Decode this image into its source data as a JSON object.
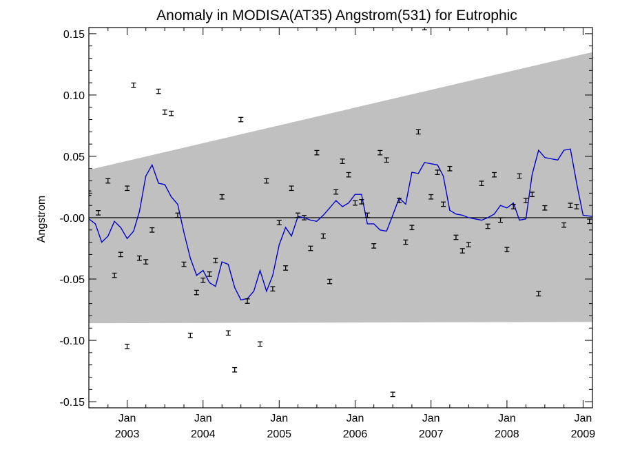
{
  "chart_data": {
    "type": "line",
    "title": "Anomaly in MODISA(AT35) Angstrom(531) for Eutrophic",
    "xlabel": "",
    "ylabel": "Angstrom",
    "xlim": [
      "2002-07-01",
      "2009-02-15"
    ],
    "ylim": [
      -0.155,
      0.155
    ],
    "y_ticks": [
      {
        "value": -0.15,
        "label": "-0.15"
      },
      {
        "value": -0.1,
        "label": "-0.10"
      },
      {
        "value": -0.05,
        "label": "-0.05"
      },
      {
        "value": 0.0,
        "label": "-0.00"
      },
      {
        "value": 0.05,
        "label": "0.05"
      },
      {
        "value": 0.1,
        "label": "0.10"
      },
      {
        "value": 0.15,
        "label": "0.15"
      }
    ],
    "x_ticks": [
      {
        "date": "2003-01-01",
        "month": "Jan",
        "year": "2003"
      },
      {
        "date": "2004-01-01",
        "month": "Jan",
        "year": "2004"
      },
      {
        "date": "2005-01-01",
        "month": "Jan",
        "year": "2005"
      },
      {
        "date": "2006-01-01",
        "month": "Jan",
        "year": "2006"
      },
      {
        "date": "2007-01-01",
        "month": "Jan",
        "year": "2007"
      },
      {
        "date": "2008-01-01",
        "month": "Jan",
        "year": "2008"
      },
      {
        "date": "2009-01-01",
        "month": "Jan",
        "year": "2009"
      }
    ],
    "grid": false,
    "zero_line": 0.0,
    "confidence_band": {
      "color": "#c0c0c0",
      "start": {
        "date": "2002-07-01",
        "upper": 0.039,
        "lower": -0.086
      },
      "end": {
        "date": "2009-02-15",
        "upper": 0.135,
        "lower": -0.085
      }
    },
    "series": [
      {
        "type": "line",
        "color": "#0000cc",
        "x": [
          "2002-07-01",
          "2002-08-01",
          "2002-09-01",
          "2002-10-01",
          "2002-11-01",
          "2002-12-01",
          "2003-01-01",
          "2003-02-01",
          "2003-03-01",
          "2003-04-01",
          "2003-05-01",
          "2003-06-01",
          "2003-07-01",
          "2003-08-01",
          "2003-09-01",
          "2003-10-01",
          "2003-11-01",
          "2003-12-01",
          "2004-01-01",
          "2004-02-01",
          "2004-03-01",
          "2004-04-01",
          "2004-05-01",
          "2004-06-01",
          "2004-07-01",
          "2004-08-01",
          "2004-09-01",
          "2004-10-01",
          "2004-11-01",
          "2004-12-01",
          "2005-01-01",
          "2005-02-01",
          "2005-03-01",
          "2005-04-01",
          "2005-05-01",
          "2005-06-01",
          "2005-07-01",
          "2005-08-01",
          "2005-09-01",
          "2005-10-01",
          "2005-11-01",
          "2005-12-01",
          "2006-01-01",
          "2006-02-01",
          "2006-03-01",
          "2006-04-01",
          "2006-05-01",
          "2006-06-01",
          "2006-07-01",
          "2006-08-01",
          "2006-09-01",
          "2006-10-01",
          "2006-11-01",
          "2006-12-01",
          "2007-01-01",
          "2007-02-01",
          "2007-03-01",
          "2007-04-01",
          "2007-05-01",
          "2007-06-01",
          "2007-07-01",
          "2007-08-01",
          "2007-09-01",
          "2007-10-01",
          "2007-11-01",
          "2007-12-01",
          "2008-01-01",
          "2008-02-01",
          "2008-03-01",
          "2008-04-01",
          "2008-05-01",
          "2008-06-01",
          "2008-07-01",
          "2008-08-01",
          "2008-09-01",
          "2008-10-01",
          "2008-11-01",
          "2008-12-01",
          "2009-01-01",
          "2009-02-15"
        ],
        "values": [
          -0.001,
          -0.005,
          -0.02,
          -0.015,
          -0.003,
          -0.008,
          -0.017,
          -0.011,
          0.005,
          0.034,
          0.043,
          0.028,
          0.027,
          0.017,
          0.011,
          -0.012,
          -0.033,
          -0.047,
          -0.043,
          -0.053,
          -0.056,
          -0.036,
          -0.038,
          -0.057,
          -0.067,
          -0.066,
          -0.06,
          -0.043,
          -0.06,
          -0.047,
          -0.022,
          -0.008,
          -0.015,
          0.001,
          0.0,
          -0.002,
          -0.003,
          0.002,
          0.008,
          0.014,
          0.009,
          0.012,
          0.019,
          0.019,
          -0.005,
          -0.005,
          -0.01,
          -0.011,
          0.002,
          0.016,
          0.011,
          0.037,
          0.036,
          0.045,
          0.044,
          0.043,
          0.034,
          0.006,
          0.003,
          0.002,
          0.0,
          -0.001,
          -0.002,
          0.0,
          0.003,
          0.01,
          0.008,
          0.012,
          -0.002,
          -0.001,
          0.035,
          0.055,
          0.049,
          0.048,
          0.047,
          0.055,
          0.056,
          0.028,
          0.002,
          0.001
        ]
      },
      {
        "type": "errorbar",
        "color": "#000000",
        "points": [
          {
            "x": "2002-07-01",
            "y": 0.02
          },
          {
            "x": "2002-08-15",
            "y": 0.004
          },
          {
            "x": "2002-10-01",
            "y": 0.03
          },
          {
            "x": "2002-11-01",
            "y": -0.047
          },
          {
            "x": "2002-12-01",
            "y": -0.03
          },
          {
            "x": "2003-01-01",
            "y": -0.105
          },
          {
            "x": "2003-01-01",
            "y": 0.024
          },
          {
            "x": "2003-02-01",
            "y": 0.108
          },
          {
            "x": "2003-03-01",
            "y": -0.033
          },
          {
            "x": "2003-04-01",
            "y": -0.036
          },
          {
            "x": "2003-05-01",
            "y": -0.01
          },
          {
            "x": "2003-06-01",
            "y": 0.103
          },
          {
            "x": "2003-07-01",
            "y": 0.086
          },
          {
            "x": "2003-08-01",
            "y": 0.085
          },
          {
            "x": "2003-09-01",
            "y": 0.002
          },
          {
            "x": "2003-10-01",
            "y": -0.038
          },
          {
            "x": "2003-11-01",
            "y": -0.096
          },
          {
            "x": "2003-12-01",
            "y": -0.061
          },
          {
            "x": "2004-01-01",
            "y": -0.051
          },
          {
            "x": "2004-02-01",
            "y": -0.046
          },
          {
            "x": "2004-03-01",
            "y": -0.035
          },
          {
            "x": "2004-04-01",
            "y": 0.017
          },
          {
            "x": "2004-05-01",
            "y": -0.094
          },
          {
            "x": "2004-06-01",
            "y": -0.124
          },
          {
            "x": "2004-07-01",
            "y": 0.08
          },
          {
            "x": "2004-08-01",
            "y": -0.068
          },
          {
            "x": "2004-10-01",
            "y": -0.103
          },
          {
            "x": "2004-11-01",
            "y": 0.03
          },
          {
            "x": "2004-12-01",
            "y": -0.058
          },
          {
            "x": "2005-01-01",
            "y": -0.004
          },
          {
            "x": "2005-02-01",
            "y": -0.041
          },
          {
            "x": "2005-03-01",
            "y": 0.024
          },
          {
            "x": "2005-04-01",
            "y": 0.002
          },
          {
            "x": "2005-05-01",
            "y": 0.0
          },
          {
            "x": "2005-06-01",
            "y": -0.025
          },
          {
            "x": "2005-07-01",
            "y": 0.053
          },
          {
            "x": "2005-08-01",
            "y": -0.015
          },
          {
            "x": "2005-09-01",
            "y": -0.052
          },
          {
            "x": "2005-10-01",
            "y": 0.021
          },
          {
            "x": "2005-11-01",
            "y": 0.046
          },
          {
            "x": "2005-12-01",
            "y": 0.035
          },
          {
            "x": "2006-01-01",
            "y": 0.012
          },
          {
            "x": "2006-02-01",
            "y": 0.013
          },
          {
            "x": "2006-03-01",
            "y": 0.002
          },
          {
            "x": "2006-04-01",
            "y": -0.023
          },
          {
            "x": "2006-05-01",
            "y": 0.053
          },
          {
            "x": "2006-06-01",
            "y": 0.047
          },
          {
            "x": "2006-07-01",
            "y": -0.144
          },
          {
            "x": "2006-08-01",
            "y": 0.014
          },
          {
            "x": "2006-09-01",
            "y": -0.02
          },
          {
            "x": "2006-10-01",
            "y": -0.008
          },
          {
            "x": "2006-11-01",
            "y": 0.07
          },
          {
            "x": "2006-12-01",
            "y": 0.155
          },
          {
            "x": "2007-01-01",
            "y": 0.017
          },
          {
            "x": "2007-02-01",
            "y": 0.037
          },
          {
            "x": "2007-03-01",
            "y": 0.011
          },
          {
            "x": "2007-04-01",
            "y": 0.04
          },
          {
            "x": "2007-05-01",
            "y": -0.016
          },
          {
            "x": "2007-06-01",
            "y": -0.027
          },
          {
            "x": "2007-07-01",
            "y": -0.022
          },
          {
            "x": "2007-09-01",
            "y": 0.028
          },
          {
            "x": "2007-10-01",
            "y": -0.007
          },
          {
            "x": "2007-11-01",
            "y": 0.035
          },
          {
            "x": "2007-12-01",
            "y": -0.002
          },
          {
            "x": "2008-01-01",
            "y": -0.026
          },
          {
            "x": "2008-02-01",
            "y": 0.009
          },
          {
            "x": "2008-03-01",
            "y": 0.034
          },
          {
            "x": "2008-04-01",
            "y": 0.014
          },
          {
            "x": "2008-05-01",
            "y": 0.019
          },
          {
            "x": "2008-06-01",
            "y": -0.062
          },
          {
            "x": "2008-07-01",
            "y": 0.008
          },
          {
            "x": "2008-10-01",
            "y": -0.006
          },
          {
            "x": "2008-11-01",
            "y": 0.01
          },
          {
            "x": "2008-12-01",
            "y": 0.009
          },
          {
            "x": "2009-02-01",
            "y": -0.003
          }
        ]
      }
    ]
  }
}
